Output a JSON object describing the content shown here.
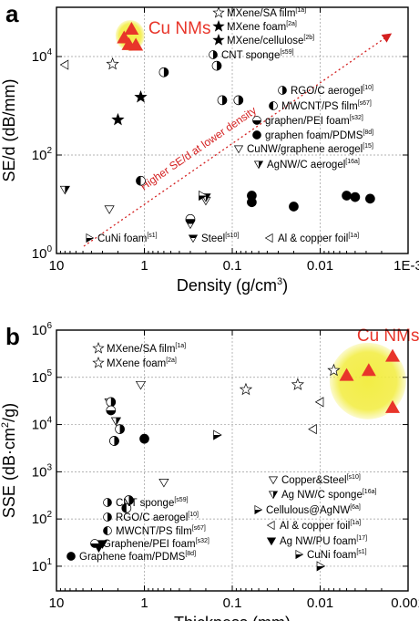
{
  "chart_data": [
    {
      "panel": "a",
      "type": "scatter",
      "xlabel": "Density (g/cm",
      "xlabel_sup": "3",
      "xlabel_end": ")",
      "ylabel": "SE/d (dB/mm)",
      "x_scale": "log",
      "x_reversed": true,
      "y_scale": "log",
      "xlim": [
        10,
        0.001
      ],
      "ylim": [
        1,
        100000
      ],
      "xticks": [
        {
          "v": 10,
          "t": "10"
        },
        {
          "v": 1,
          "t": "1"
        },
        {
          "v": 0.1,
          "t": "0.1"
        },
        {
          "v": 0.01,
          "t": "0.01"
        },
        {
          "v": 0.001,
          "t": "1E-3"
        }
      ],
      "yticks": [
        {
          "v": 1,
          "b": "10",
          "e": "0"
        },
        {
          "v": 100,
          "b": "10",
          "e": "2"
        },
        {
          "v": 10000,
          "b": "10",
          "e": "4"
        }
      ],
      "grid": true,
      "highlight_label": "Cu NMs",
      "trend_label": "Higher SE/d at lower density",
      "series": [
        {
          "name": "Cu NMs",
          "ref": "",
          "marker": "triangle-red",
          "points": [
            [
              1.4,
              36000
            ],
            [
              1.7,
              24000
            ],
            [
              1.5,
              17500
            ],
            [
              1.25,
              17000
            ]
          ]
        },
        {
          "name": "MXene/SA film",
          "ref": "[1a]",
          "marker": "star-open",
          "points": [
            [
              2.3,
              7000
            ]
          ]
        },
        {
          "name": "MXene foam",
          "ref": "[2a]",
          "marker": "star-filled",
          "points": [
            [
              2.0,
              520
            ]
          ]
        },
        {
          "name": "MXene/cellulose",
          "ref": "[2b]",
          "marker": "star-filled",
          "points": [
            [
              1.1,
              1500
            ]
          ]
        },
        {
          "name": "CNT sponge",
          "ref": "[s59]",
          "marker": "circle-right",
          "points": [
            [
              0.15,
              6500
            ]
          ]
        },
        {
          "name": "RGO/C aerogel",
          "ref": "[10]",
          "marker": "circle-right",
          "points": [
            [
              0.085,
              1300
            ],
            [
              0.6,
              4800
            ],
            [
              0.13,
              1300
            ]
          ]
        },
        {
          "name": "MWCNT/PS film",
          "ref": "[s67]",
          "marker": "circle-left",
          "points": [
            [
              1.1,
              30
            ]
          ]
        },
        {
          "name": "graphen/PEI foam",
          "ref": "[s32]",
          "marker": "circle-bottom",
          "points": [
            [
              0.3,
              5
            ]
          ]
        },
        {
          "name": "graphen foam/PDMS",
          "ref": "[8d]",
          "marker": "circle-filled",
          "points": [
            [
              0.06,
              15
            ],
            [
              0.06,
              11
            ],
            [
              0.02,
              9
            ],
            [
              0.005,
              15
            ],
            [
              0.004,
              14
            ],
            [
              0.0027,
              13
            ]
          ]
        },
        {
          "name": "CuNW/graphene aerogel",
          "ref": "[15]",
          "marker": "tri-down-open",
          "points": [
            [
              2.5,
              8
            ],
            [
              0.2,
              12
            ]
          ]
        },
        {
          "name": "AgNW/C aerogel",
          "ref": "[16a]",
          "marker": "tri-down-half",
          "points": [
            [
              8,
              20
            ],
            [
              0.2,
              14
            ]
          ]
        },
        {
          "name": "CuNi foam",
          "ref": "[s1]",
          "marker": "tri-right-half",
          "points": [
            [
              0.22,
              15
            ]
          ]
        },
        {
          "name": "Steel",
          "ref": "[s10]",
          "marker": "tri-down-half2",
          "points": [
            [
              0.3,
              4
            ]
          ]
        },
        {
          "name": "Al & copper foil",
          "ref": "[1a]",
          "marker": "tri-left-half",
          "points": [
            [
              8,
              6800
            ]
          ]
        }
      ]
    },
    {
      "panel": "b",
      "type": "scatter",
      "xlabel": "Thickness (mm)",
      "ylabel": "SSE (dB·cm",
      "ylabel_sup": "2",
      "ylabel_end": "/g)",
      "x_scale": "log",
      "x_reversed": true,
      "y_scale": "log",
      "xlim": [
        10,
        0.001
      ],
      "ylim": [
        3,
        1000000
      ],
      "xticks": [
        {
          "v": 10,
          "t": "10"
        },
        {
          "v": 1,
          "t": "1"
        },
        {
          "v": 0.1,
          "t": "0.1"
        },
        {
          "v": 0.01,
          "t": "0.01"
        },
        {
          "v": 0.001,
          "t": "0.001"
        }
      ],
      "yticks": [
        {
          "v": 10,
          "b": "10",
          "e": "1"
        },
        {
          "v": 100,
          "b": "10",
          "e": "2"
        },
        {
          "v": 1000,
          "b": "10",
          "e": "3"
        },
        {
          "v": 10000,
          "b": "10",
          "e": "4"
        },
        {
          "v": 100000,
          "b": "10",
          "e": "5"
        },
        {
          "v": 1000000,
          "b": "10",
          "e": "6"
        }
      ],
      "grid": true,
      "highlight_label": "Cu NMs",
      "series": [
        {
          "name": "Cu NMs",
          "ref": "",
          "marker": "triangle-red",
          "points": [
            [
              0.005,
              110000
            ],
            [
              0.0028,
              140000
            ],
            [
              0.0015,
              280000
            ],
            [
              0.0015,
              23000
            ]
          ]
        },
        {
          "name": "MXene/SA film",
          "ref": "[1a]",
          "marker": "star-open",
          "points": [
            [
              0.007,
              140000
            ]
          ]
        },
        {
          "name": "MXene foam",
          "ref": "[2a]",
          "marker": "star-open",
          "points": [
            [
              0.07,
              55000
            ],
            [
              0.018,
              70000
            ]
          ]
        },
        {
          "name": "Copper&Steel",
          "ref": "[s10]",
          "marker": "tri-down-open",
          "points": [
            [
              1.1,
              70000
            ],
            [
              0.6,
              600
            ]
          ]
        },
        {
          "name": "Ag NW/C sponge",
          "ref": "[16a]",
          "marker": "tri-down-half",
          "points": [
            [
              2.1,
              12000
            ],
            [
              2.5,
              30000
            ]
          ]
        },
        {
          "name": "Cellulous@AgNW",
          "ref": "[6a]",
          "marker": "tri-right-half",
          "points": [
            [
              0.15,
              6000
            ]
          ]
        },
        {
          "name": "CNT sponge",
          "ref": "[s59]",
          "marker": "circle-right",
          "points": [
            [
              2.4,
              30000
            ],
            [
              2.2,
              4500
            ],
            [
              1.5,
              250
            ]
          ]
        },
        {
          "name": "RGO/C aerogel",
          "ref": "[10]",
          "marker": "circle-right",
          "points": [
            [
              1.9,
              8000
            ],
            [
              2.2,
              4500
            ]
          ]
        },
        {
          "name": "MWCNT/PS film",
          "ref": "[s67]",
          "marker": "circle-left",
          "points": [
            [
              1.6,
              170
            ]
          ]
        },
        {
          "name": "Al & copper foil",
          "ref": "[1a]",
          "marker": "tri-left-half",
          "points": [
            [
              0.012,
              8000
            ],
            [
              0.01,
              30000
            ]
          ]
        },
        {
          "name": "Graphene/PEI foam",
          "ref": "[s32]",
          "marker": "circle-bottom",
          "points": [
            [
              2.4,
              20000
            ]
          ]
        },
        {
          "name": "Ag NW/PU foam",
          "ref": "[17]",
          "marker": "tri-down-filled",
          "points": [
            [
              3,
              30
            ],
            [
              3.3,
              25
            ]
          ]
        },
        {
          "name": "Graphene foam/PDMS",
          "ref": "[8d]",
          "marker": "circle-filled",
          "points": [
            [
              1.0,
              5000
            ]
          ]
        },
        {
          "name": "CuNi foam",
          "ref": "[s1]",
          "marker": "tri-right-half",
          "points": [
            [
              0.01,
              10
            ]
          ]
        }
      ]
    }
  ],
  "legend_a": [
    {
      "name": "MXene/SA film",
      "ref": "[1a]",
      "marker": "star-open"
    },
    {
      "name": "MXene foam",
      "ref": "[2a]",
      "marker": "star-filled"
    },
    {
      "name": "MXene/cellulose",
      "ref": "[2b]",
      "marker": "star-filled"
    },
    {
      "name": "CNT sponge",
      "ref": "[s59]",
      "marker": "circle-right"
    },
    {
      "name": "RGO/C aerogel",
      "ref": "[10]",
      "marker": "circle-right"
    },
    {
      "name": "MWCNT/PS film",
      "ref": "[s67]",
      "marker": "circle-left"
    },
    {
      "name": "graphen/PEI foam",
      "ref": "[s32]",
      "marker": "circle-bottom"
    },
    {
      "name": "graphen foam/PDMS",
      "ref": "[8d]",
      "marker": "circle-filled"
    },
    {
      "name": "CuNW/graphene aerogel",
      "ref": "[15]",
      "marker": "tri-down-open"
    },
    {
      "name": "AgNW/C aerogel",
      "ref": "[16a]",
      "marker": "tri-down-half"
    },
    {
      "name": "CuNi foam",
      "ref": "[s1]",
      "marker": "tri-right-half"
    },
    {
      "name": "Steel",
      "ref": "[s10]",
      "marker": "tri-down-half2"
    },
    {
      "name": "Al & copper foil",
      "ref": "[1a]",
      "marker": "tri-left-half"
    }
  ],
  "legend_b": [
    {
      "name": "MXene/SA film",
      "ref": "[1a]",
      "marker": "star-open"
    },
    {
      "name": "MXene foam",
      "ref": "[2a]",
      "marker": "star-open"
    },
    {
      "name": "Copper&Steel",
      "ref": "[s10]",
      "marker": "tri-down-open"
    },
    {
      "name": "Ag NW/C sponge",
      "ref": "[16a]",
      "marker": "tri-down-half"
    },
    {
      "name": "CNT sponge",
      "ref": "[s59]",
      "marker": "circle-right"
    },
    {
      "name": "Cellulous@AgNW",
      "ref": "[6a]",
      "marker": "tri-right-half"
    },
    {
      "name": "RGO/C aerogel",
      "ref": "[10]",
      "marker": "circle-right"
    },
    {
      "name": "MWCNT/PS film",
      "ref": "[s67]",
      "marker": "circle-left"
    },
    {
      "name": "Al & copper foil",
      "ref": "[1a]",
      "marker": "tri-left-half"
    },
    {
      "name": "Graphene/PEI foam",
      "ref": "[s32]",
      "marker": "circle-bottom"
    },
    {
      "name": "Ag NW/PU foam",
      "ref": "[17]",
      "marker": "tri-down-filled"
    },
    {
      "name": "Graphene foam/PDMS",
      "ref": "[8d]",
      "marker": "circle-filled"
    },
    {
      "name": "CuNi foam",
      "ref": "[s1]",
      "marker": "tri-right-half"
    }
  ],
  "colors": {
    "cu_marker": "#e8352a",
    "cu_glow": "#f2ec3c",
    "trend": "#d42020",
    "cu_label": "#e8352a"
  }
}
